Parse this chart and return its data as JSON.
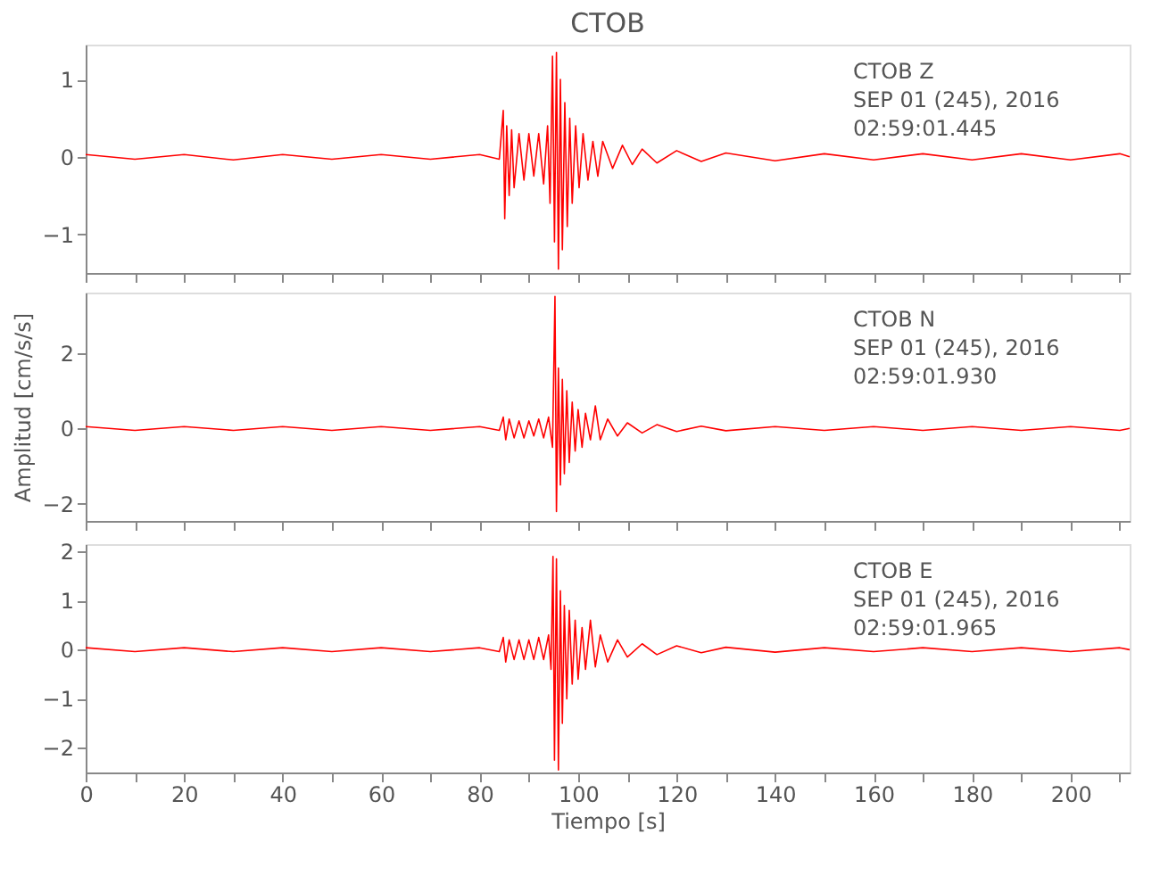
{
  "chart_data": [
    {
      "type": "line",
      "title": "CTOB",
      "annotations": [
        "CTOB   Z",
        "SEP 01 (245), 2016",
        "02:59:01.445"
      ],
      "xlim": [
        0,
        212
      ],
      "xticks": [
        0,
        {
          "value": 10,
          "label": null
        },
        20,
        {
          "value": 30,
          "label": null
        },
        40,
        {
          "value": 50,
          "label": null
        },
        60,
        {
          "value": 70,
          "label": null
        },
        80,
        {
          "value": 90,
          "label": null
        },
        100,
        {
          "value": 110,
          "label": null
        },
        120,
        {
          "value": 130,
          "label": null
        },
        140,
        {
          "value": 150,
          "label": null
        },
        160,
        {
          "value": 170,
          "label": null
        },
        180,
        {
          "value": 190,
          "label": null
        },
        200,
        {
          "value": 210,
          "label": null
        }
      ],
      "ylim": [
        -1.5,
        1.45
      ],
      "yticks": [
        -1,
        0,
        1
      ],
      "tick_labels": "y",
      "grid": false,
      "series": [
        {
          "color": "#ff0000",
          "x": [
            0,
            10,
            20,
            30,
            40,
            50,
            60,
            70,
            80,
            84,
            84.8,
            85.1,
            85.5,
            86,
            86.5,
            87,
            88,
            89,
            90,
            91,
            92,
            93,
            93.8,
            94.3,
            94.8,
            95.2,
            95.6,
            96,
            96.4,
            96.8,
            97.3,
            97.8,
            98.3,
            98.8,
            99.5,
            100.2,
            101,
            102,
            103,
            104,
            105,
            107,
            109,
            111,
            113,
            116,
            120,
            125,
            130,
            140,
            150,
            160,
            170,
            180,
            190,
            200,
            210,
            212
          ],
          "values": [
            0.03,
            -0.03,
            0.03,
            -0.04,
            0.03,
            -0.03,
            0.03,
            -0.03,
            0.03,
            -0.03,
            0.6,
            -0.8,
            0.4,
            -0.5,
            0.35,
            -0.4,
            0.3,
            -0.3,
            0.3,
            -0.25,
            0.3,
            -0.35,
            0.4,
            -0.6,
            1.3,
            -1.1,
            1.35,
            -1.45,
            1.0,
            -1.2,
            0.7,
            -0.9,
            0.5,
            -0.6,
            0.4,
            -0.4,
            0.3,
            -0.3,
            0.2,
            -0.25,
            0.2,
            -0.15,
            0.15,
            -0.1,
            0.1,
            -0.08,
            0.08,
            -0.06,
            0.05,
            -0.05,
            0.04,
            -0.04,
            0.04,
            -0.04,
            0.04,
            -0.04,
            0.04,
            0
          ]
        }
      ]
    },
    {
      "type": "line",
      "ylabel": "Amplitud [cm/s/s]",
      "annotations": [
        "CTOB   N",
        "SEP 01 (245), 2016",
        "02:59:01.930"
      ],
      "xlim": [
        0,
        212
      ],
      "xticks": [
        0,
        {
          "value": 10,
          "label": null
        },
        20,
        {
          "value": 30,
          "label": null
        },
        40,
        {
          "value": 50,
          "label": null
        },
        60,
        {
          "value": 70,
          "label": null
        },
        80,
        {
          "value": 90,
          "label": null
        },
        100,
        {
          "value": 110,
          "label": null
        },
        120,
        {
          "value": 130,
          "label": null
        },
        140,
        {
          "value": 150,
          "label": null
        },
        160,
        {
          "value": 170,
          "label": null
        },
        180,
        {
          "value": 190,
          "label": null
        },
        200,
        {
          "value": 210,
          "label": null
        }
      ],
      "ylim": [
        -2.45,
        3.6
      ],
      "yticks": [
        -2,
        0,
        2
      ],
      "tick_labels": "y",
      "grid": false,
      "series": [
        {
          "color": "#ff0000",
          "x": [
            0,
            10,
            20,
            30,
            40,
            50,
            60,
            70,
            80,
            84,
            84.8,
            85.3,
            86,
            87,
            88,
            89,
            90,
            91,
            92,
            93,
            94,
            94.8,
            95.3,
            95.6,
            96,
            96.4,
            96.8,
            97.2,
            97.7,
            98.2,
            98.8,
            99.4,
            100,
            100.8,
            101.5,
            102.5,
            103.5,
            104.5,
            106,
            108,
            110,
            113,
            116,
            120,
            125,
            130,
            140,
            150,
            160,
            170,
            180,
            190,
            200,
            210,
            212
          ],
          "values": [
            0.05,
            -0.05,
            0.05,
            -0.05,
            0.05,
            -0.05,
            0.05,
            -0.05,
            0.05,
            -0.05,
            0.3,
            -0.3,
            0.25,
            -0.25,
            0.2,
            -0.25,
            0.2,
            -0.2,
            0.25,
            -0.25,
            0.3,
            -0.5,
            3.5,
            -2.2,
            1.6,
            -1.5,
            1.3,
            -1.2,
            1.0,
            -0.9,
            0.7,
            -0.6,
            0.5,
            -0.5,
            0.4,
            -0.3,
            0.6,
            -0.3,
            0.25,
            -0.2,
            0.15,
            -0.12,
            0.1,
            -0.08,
            0.06,
            -0.06,
            0.05,
            -0.05,
            0.05,
            -0.05,
            0.05,
            -0.05,
            0.05,
            -0.05,
            0
          ]
        }
      ]
    },
    {
      "type": "line",
      "xlabel": "Tiempo [s]",
      "annotations": [
        "CTOB   E",
        "SEP 01 (245), 2016",
        "02:59:01.965"
      ],
      "xlim": [
        0,
        212
      ],
      "xticks": [
        0,
        {
          "value": 10,
          "label": null
        },
        20,
        {
          "value": 30,
          "label": null
        },
        40,
        {
          "value": 50,
          "label": null
        },
        60,
        {
          "value": 70,
          "label": null
        },
        80,
        {
          "value": 90,
          "label": null
        },
        100,
        {
          "value": 110,
          "label": null
        },
        120,
        {
          "value": 130,
          "label": null
        },
        140,
        {
          "value": 150,
          "label": null
        },
        160,
        {
          "value": 170,
          "label": null
        },
        180,
        {
          "value": 190,
          "label": null
        },
        200,
        {
          "value": 210,
          "label": null
        }
      ],
      "ylim": [
        -2.5,
        2.15
      ],
      "yticks": [
        -2,
        -1,
        0,
        1,
        2
      ],
      "grid": false,
      "series": [
        {
          "color": "#ff0000",
          "x": [
            0,
            10,
            20,
            30,
            40,
            50,
            60,
            70,
            80,
            84,
            84.8,
            85.3,
            86,
            87,
            88,
            89,
            90,
            91,
            92,
            93,
            94,
            94.5,
            94.9,
            95.2,
            95.6,
            96,
            96.4,
            96.8,
            97.2,
            97.7,
            98.2,
            98.8,
            99.4,
            100,
            100.8,
            101.5,
            102.5,
            103.5,
            104.5,
            106,
            108,
            110,
            113,
            116,
            120,
            125,
            130,
            140,
            150,
            160,
            170,
            180,
            190,
            200,
            210,
            212
          ],
          "values": [
            0.04,
            -0.04,
            0.04,
            -0.04,
            0.04,
            -0.04,
            0.04,
            -0.04,
            0.04,
            -0.04,
            0.25,
            -0.25,
            0.2,
            -0.2,
            0.2,
            -0.2,
            0.2,
            -0.2,
            0.25,
            -0.2,
            0.3,
            -0.4,
            1.9,
            -2.25,
            1.85,
            -2.45,
            1.2,
            -1.5,
            0.9,
            -1.0,
            0.8,
            -0.7,
            0.6,
            -0.6,
            0.45,
            -0.4,
            0.6,
            -0.35,
            0.3,
            -0.25,
            0.2,
            -0.15,
            0.12,
            -0.1,
            0.08,
            -0.06,
            0.05,
            -0.05,
            0.04,
            -0.04,
            0.04,
            -0.04,
            0.04,
            -0.04,
            0.04,
            0
          ]
        }
      ]
    }
  ]
}
